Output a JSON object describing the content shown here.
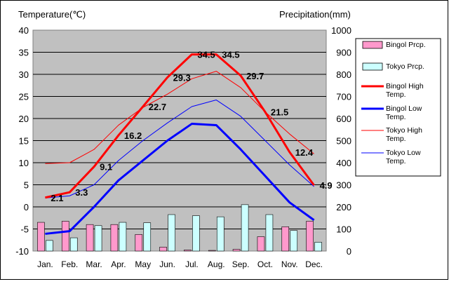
{
  "chart_data": {
    "type": "bar",
    "title": "",
    "y_left_label": "Temperature(℃)",
    "y_right_label": "Precipitation(mm)",
    "categories": [
      "Jan.",
      "Feb.",
      "Mar.",
      "Apr.",
      "May",
      "Jun.",
      "Jul.",
      "Aug.",
      "Sep.",
      "Oct.",
      "Nov.",
      "Dec."
    ],
    "ylim_left": [
      -10,
      40
    ],
    "ylim_right": [
      0,
      1000
    ],
    "y_left_ticks": [
      "-10",
      "-5",
      "0",
      "5",
      "10",
      "15",
      "20",
      "25",
      "30",
      "35",
      "40"
    ],
    "y_right_ticks": [
      "0",
      "100",
      "200",
      "300",
      "400",
      "500",
      "600",
      "700",
      "800",
      "900",
      "1000"
    ],
    "grid": true,
    "legend_position": "right",
    "bar_series": [
      {
        "name": "Bingol Prcp.",
        "color": "#ff99cc",
        "values": [
          130,
          135,
          120,
          120,
          75,
          18,
          5,
          3,
          8,
          65,
          110,
          135
        ]
      },
      {
        "name": "Tokyo Prcp.",
        "color": "#ccffff",
        "values": [
          48,
          60,
          115,
          130,
          128,
          165,
          160,
          155,
          210,
          165,
          93,
          40
        ]
      }
    ],
    "line_series": [
      {
        "name": "Bingol High Temp.",
        "color": "#ff0000",
        "width": "thick",
        "values": [
          2.1,
          3.3,
          9.1,
          16.2,
          22.7,
          29.3,
          34.5,
          34.5,
          29.7,
          21.5,
          12.4,
          4.9
        ]
      },
      {
        "name": "Bingol Low Temp.",
        "color": "#0000ff",
        "width": "thick",
        "values": [
          -6.1,
          -5.5,
          0,
          6,
          10.5,
          15,
          18.8,
          18.5,
          13,
          7,
          1,
          -3
        ]
      },
      {
        "name": "Tokyo High Temp.",
        "color": "#ff0000",
        "width": "thin",
        "values": [
          9.8,
          10,
          13,
          18.5,
          22.5,
          25.5,
          29,
          30.7,
          27,
          21.5,
          16.5,
          12
        ]
      },
      {
        "name": "Tokyo Low Temp.",
        "color": "#0000ff",
        "width": "thin",
        "values": [
          2,
          2.5,
          5,
          10.5,
          15,
          19,
          22.7,
          24.2,
          20.5,
          15,
          9.5,
          4.6
        ]
      }
    ],
    "data_labels": [
      "2.1",
      "3.3",
      "9.1",
      "16.2",
      "22.7",
      "29.3",
      "34.5",
      "34.5",
      "29.7",
      "21.5",
      "12.4",
      "4.9"
    ],
    "legend": [
      {
        "label": "Bingol Prcp.",
        "kind": "box",
        "color": "#ff99cc"
      },
      {
        "label": "Tokyo Prcp.",
        "kind": "box",
        "color": "#ccffff"
      },
      {
        "label": "Bingol High Temp.",
        "kind": "line",
        "color": "#ff0000",
        "width": "thick"
      },
      {
        "label": "Bingol Low Temp.",
        "kind": "line",
        "color": "#0000ff",
        "width": "thick"
      },
      {
        "label": "Tokyo High Temp.",
        "kind": "line",
        "color": "#ff0000",
        "width": "thin"
      },
      {
        "label": "Tokyo Low Temp.",
        "kind": "line",
        "color": "#0000ff",
        "width": "thin"
      }
    ]
  }
}
